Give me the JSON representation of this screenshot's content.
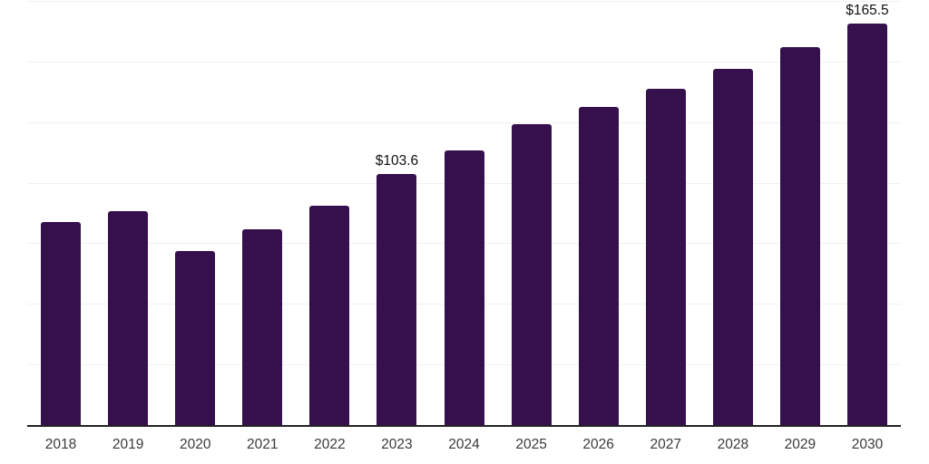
{
  "chart_data": {
    "type": "bar",
    "title": "",
    "xlabel": "",
    "ylabel": "",
    "categories": [
      "2018",
      "2019",
      "2020",
      "2021",
      "2022",
      "2023",
      "2024",
      "2025",
      "2026",
      "2027",
      "2028",
      "2029",
      "2030"
    ],
    "values": [
      83.9,
      88.4,
      71.9,
      80.9,
      90.6,
      103.6,
      113.4,
      124.3,
      131.4,
      138.9,
      146.8,
      156.1,
      165.5
    ],
    "data_labels": {
      "2023": "$103.6",
      "2030": "$165.5"
    },
    "ylim": [
      0,
      175
    ],
    "gridline_step": 25,
    "grid": true,
    "legend": "none",
    "y_axis_tick_labels_visible": false,
    "bar_color": "#36104C",
    "axis_line_color": "#222222",
    "gridline_color": "#f1f1f1",
    "data_label_color": "#111111",
    "tick_label_color": "#3a3a3a",
    "background_color": "#ffffff"
  }
}
